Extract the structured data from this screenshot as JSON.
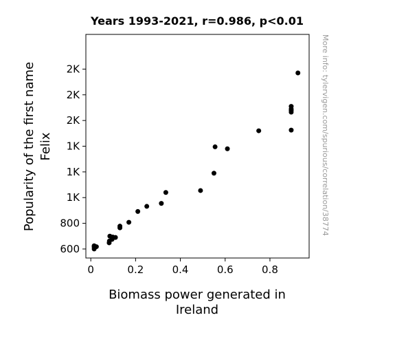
{
  "chart_data": {
    "type": "scatter",
    "title": "Years 1993-2021, r=0.986, p<0.01",
    "xlabel_lines": [
      "Biomass power generated in",
      "Ireland"
    ],
    "ylabel_lines": [
      "Popularity of the first name",
      "Felix"
    ],
    "xlim": [
      -0.022,
      0.975
    ],
    "ylim": [
      530,
      2270
    ],
    "x_ticks": [
      {
        "value": 0,
        "label": "0"
      },
      {
        "value": 0.2,
        "label": "0.2"
      },
      {
        "value": 0.4,
        "label": "0.4"
      },
      {
        "value": 0.6,
        "label": "0.6"
      },
      {
        "value": 0.8,
        "label": "0.8"
      }
    ],
    "y_ticks": [
      {
        "value": 600,
        "label": "600"
      },
      {
        "value": 800,
        "label": "800"
      },
      {
        "value": 1000,
        "label": "1K"
      },
      {
        "value": 1200,
        "label": "1K"
      },
      {
        "value": 1400,
        "label": "1K"
      },
      {
        "value": 1600,
        "label": "2K"
      },
      {
        "value": 1800,
        "label": "2K"
      },
      {
        "value": 2000,
        "label": "2K"
      }
    ],
    "grid": false,
    "marker_color": "#000000",
    "points": [
      {
        "x": 0.015,
        "y": 600
      },
      {
        "x": 0.015,
        "y": 615
      },
      {
        "x": 0.015,
        "y": 625
      },
      {
        "x": 0.025,
        "y": 618
      },
      {
        "x": 0.082,
        "y": 648
      },
      {
        "x": 0.083,
        "y": 662
      },
      {
        "x": 0.085,
        "y": 700
      },
      {
        "x": 0.095,
        "y": 675
      },
      {
        "x": 0.098,
        "y": 693
      },
      {
        "x": 0.11,
        "y": 690
      },
      {
        "x": 0.13,
        "y": 765
      },
      {
        "x": 0.13,
        "y": 778
      },
      {
        "x": 0.17,
        "y": 808
      },
      {
        "x": 0.21,
        "y": 892
      },
      {
        "x": 0.25,
        "y": 932
      },
      {
        "x": 0.315,
        "y": 955
      },
      {
        "x": 0.335,
        "y": 1040
      },
      {
        "x": 0.49,
        "y": 1055
      },
      {
        "x": 0.55,
        "y": 1190
      },
      {
        "x": 0.555,
        "y": 1395
      },
      {
        "x": 0.61,
        "y": 1380
      },
      {
        "x": 0.75,
        "y": 1520
      },
      {
        "x": 0.895,
        "y": 1525
      },
      {
        "x": 0.895,
        "y": 1665
      },
      {
        "x": 0.895,
        "y": 1678
      },
      {
        "x": 0.895,
        "y": 1690
      },
      {
        "x": 0.895,
        "y": 1710
      },
      {
        "x": 0.925,
        "y": 1970
      }
    ]
  },
  "watermark": "More info: tylervigen.com/spurious/correlation/38774"
}
